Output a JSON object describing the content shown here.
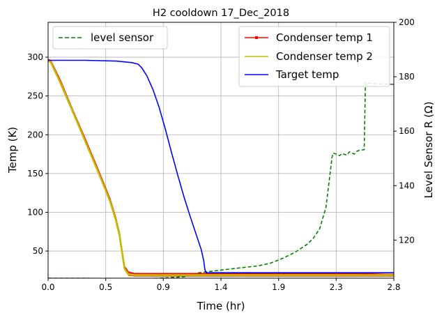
{
  "chart_data": {
    "type": "line",
    "title": "H2 cooldown 17_Dec_2018",
    "xlabel": "Time (hr)",
    "ylabel": "Temp (K)",
    "y2label": "Level Sensor R (Ω)",
    "xlim": [
      0.0,
      2.8
    ],
    "ylim": [
      15,
      345
    ],
    "y2lim": [
      106,
      200
    ],
    "x_tick_values": [
      0.0,
      0.467,
      0.933,
      1.4,
      1.867,
      2.333,
      2.8
    ],
    "x_tick_labels": [
      "0.0",
      "0.5",
      "0.9",
      "1.4",
      "1.9",
      "2.3",
      "2.8"
    ],
    "y_ticks": [
      50,
      100,
      150,
      200,
      250,
      300
    ],
    "y2_ticks": [
      120,
      140,
      160,
      180,
      200
    ],
    "grid": true,
    "legends": [
      {
        "placement": "upper-left",
        "entries": [
          "level sensor"
        ]
      },
      {
        "placement": "upper-right",
        "entries": [
          "Condenser temp 1",
          "Condenser temp 2",
          "Target temp"
        ]
      }
    ],
    "series": [
      {
        "name": "Condenser temp 1",
        "axis": "left",
        "color": "#ff0000",
        "style": "solid-square-marker",
        "x": [
          0.0,
          0.02,
          0.1,
          0.2,
          0.3,
          0.4,
          0.5,
          0.55,
          0.58,
          0.6,
          0.62,
          0.65,
          0.7,
          1.0,
          1.5,
          2.0,
          2.5,
          2.75,
          2.8
        ],
        "y": [
          297,
          296,
          270,
          232,
          195,
          157,
          118,
          92,
          72,
          50,
          30,
          23,
          21,
          21,
          21,
          21,
          21,
          20,
          20
        ],
        "band_low": [
          295,
          294,
          264,
          227,
          190,
          152,
          112,
          86,
          66,
          43,
          25,
          18,
          17,
          17,
          17,
          17,
          17,
          17,
          17
        ]
      },
      {
        "name": "Condenser temp 2",
        "axis": "left",
        "color": "#bfbf00",
        "style": "solid",
        "x": [
          0.0,
          0.02,
          0.1,
          0.2,
          0.3,
          0.4,
          0.5,
          0.55,
          0.58,
          0.6,
          0.62,
          0.65,
          0.7,
          1.0,
          1.5,
          2.0,
          2.5,
          2.8
        ],
        "y": [
          295,
          294,
          267,
          230,
          192,
          154,
          115,
          89,
          69,
          47,
          27,
          20,
          19,
          19,
          19,
          19,
          19,
          19
        ]
      },
      {
        "name": "Target temp",
        "axis": "left",
        "color": "#0000ff",
        "style": "solid",
        "x": [
          0.0,
          0.3,
          0.55,
          0.68,
          0.73,
          0.76,
          0.8,
          0.85,
          0.9,
          0.95,
          1.0,
          1.05,
          1.1,
          1.15,
          1.2,
          1.24,
          1.26,
          1.27,
          1.28,
          1.5,
          2.0,
          2.5,
          2.8
        ],
        "y": [
          296,
          296,
          295,
          293,
          291,
          286,
          276,
          258,
          235,
          207,
          177,
          148,
          120,
          95,
          71,
          52,
          38,
          26,
          22,
          22,
          22,
          22,
          22
        ]
      },
      {
        "name": "level sensor",
        "axis": "right",
        "color": "#008000",
        "style": "dashed",
        "x": [
          0.0,
          0.3,
          0.6,
          0.9,
          1.1,
          1.18,
          1.22,
          1.3,
          1.5,
          1.7,
          1.8,
          1.9,
          2.0,
          2.1,
          2.15,
          2.2,
          2.25,
          2.28,
          2.3,
          2.31,
          2.36,
          2.38,
          2.42,
          2.44,
          2.48,
          2.5,
          2.52,
          2.56,
          2.57,
          2.6,
          2.7,
          2.8
        ],
        "y": [
          106,
          106,
          105.6,
          106,
          106.5,
          107.4,
          108,
          108.4,
          109.5,
          110.5,
          111.5,
          113.3,
          115.5,
          118.5,
          120.8,
          124.2,
          132,
          143,
          150.5,
          152,
          151,
          151.8,
          151.2,
          152.4,
          151.6,
          152.6,
          153,
          153.2,
          178,
          177.6,
          177.3,
          177.2
        ]
      }
    ]
  }
}
